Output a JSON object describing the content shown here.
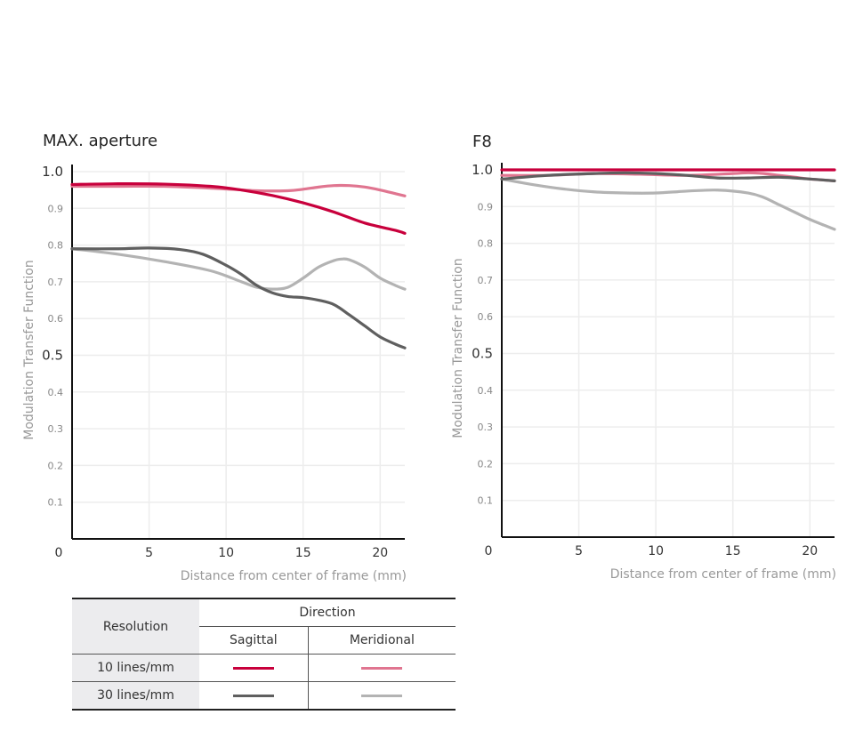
{
  "chart_data": [
    {
      "type": "line",
      "title": "MAX. aperture",
      "xlabel": "Distance from center of frame (mm)",
      "ylabel": "Modulation Transfer Function",
      "xlim": [
        0,
        21.6
      ],
      "ylim": [
        0,
        1.0
      ],
      "xticks": [
        "0",
        "5",
        "10",
        "15",
        "20"
      ],
      "yticks": [
        "0.1",
        "0.2",
        "0.3",
        "0.4",
        "0.5",
        "0.6",
        "0.7",
        "0.8",
        "0.9",
        "1.0"
      ],
      "series": [
        {
          "name": "10 lines/mm Meridional",
          "color": "#e07590",
          "x": [
            0,
            3,
            6,
            9,
            12,
            14,
            15,
            16,
            17,
            18,
            19,
            20,
            21,
            21.6
          ],
          "y": [
            0.96,
            0.96,
            0.96,
            0.955,
            0.948,
            0.948,
            0.952,
            0.958,
            0.962,
            0.962,
            0.958,
            0.95,
            0.94,
            0.934
          ]
        },
        {
          "name": "10 lines/mm Sagittal",
          "color": "#c8003c",
          "x": [
            0,
            3,
            6,
            9,
            11,
            13,
            15,
            17,
            19,
            21,
            21.6
          ],
          "y": [
            0.965,
            0.967,
            0.966,
            0.96,
            0.95,
            0.935,
            0.915,
            0.89,
            0.86,
            0.84,
            0.832
          ]
        },
        {
          "name": "30 lines/mm Meridional",
          "color": "#b3b3b3",
          "x": [
            0,
            3,
            6,
            9,
            11,
            12,
            13,
            14,
            15,
            16,
            17,
            17.5,
            18,
            19,
            20,
            21,
            21.6
          ],
          "y": [
            0.79,
            0.775,
            0.755,
            0.73,
            0.7,
            0.685,
            0.68,
            0.685,
            0.71,
            0.74,
            0.758,
            0.762,
            0.76,
            0.74,
            0.71,
            0.69,
            0.68
          ]
        },
        {
          "name": "30 lines/mm Sagittal",
          "color": "#5f5f5f",
          "x": [
            0,
            3,
            5,
            7,
            8.5,
            10,
            11,
            12,
            13,
            14,
            15,
            16,
            17,
            18,
            19,
            20,
            21,
            21.6
          ],
          "y": [
            0.79,
            0.79,
            0.792,
            0.788,
            0.775,
            0.745,
            0.72,
            0.69,
            0.67,
            0.66,
            0.657,
            0.65,
            0.638,
            0.61,
            0.58,
            0.55,
            0.53,
            0.52
          ]
        }
      ]
    },
    {
      "type": "line",
      "title": "F8",
      "xlabel": "Distance from center of frame (mm)",
      "ylabel": "Modulation Transfer Function",
      "xlim": [
        0,
        21.6
      ],
      "ylim": [
        0,
        1.0
      ],
      "xticks": [
        "0",
        "5",
        "10",
        "15",
        "20"
      ],
      "yticks": [
        "0.1",
        "0.2",
        "0.3",
        "0.4",
        "0.5",
        "0.6",
        "0.7",
        "0.8",
        "0.9",
        "1.0"
      ],
      "series": [
        {
          "name": "10 lines/mm Meridional",
          "color": "#e07590",
          "x": [
            0,
            3,
            6,
            9,
            12,
            15,
            16,
            17,
            18,
            19,
            20,
            21,
            21.6
          ],
          "y": [
            0.985,
            0.985,
            0.99,
            0.988,
            0.985,
            0.99,
            0.992,
            0.99,
            0.985,
            0.98,
            0.975,
            0.972,
            0.97
          ]
        },
        {
          "name": "10 lines/mm Sagittal",
          "color": "#c8003c",
          "x": [
            0,
            5,
            10,
            15,
            20,
            21.6
          ],
          "y": [
            1.0,
            1.0,
            1.0,
            1.0,
            1.0,
            1.0
          ]
        },
        {
          "name": "30 lines/mm Meridional",
          "color": "#b3b3b3",
          "x": [
            0,
            2,
            4,
            6,
            8,
            10,
            12,
            14,
            16,
            17,
            18,
            19,
            20,
            21,
            21.6
          ],
          "y": [
            0.975,
            0.96,
            0.948,
            0.94,
            0.937,
            0.937,
            0.942,
            0.945,
            0.937,
            0.925,
            0.905,
            0.885,
            0.865,
            0.848,
            0.838
          ]
        },
        {
          "name": "30 lines/mm Sagittal",
          "color": "#5f5f5f",
          "x": [
            0,
            3,
            6,
            8,
            10,
            12,
            14,
            16,
            18,
            20,
            21.6
          ],
          "y": [
            0.975,
            0.985,
            0.99,
            0.992,
            0.99,
            0.985,
            0.978,
            0.978,
            0.98,
            0.975,
            0.97
          ]
        }
      ]
    }
  ],
  "legend": {
    "resolution_header": "Resolution",
    "direction_header": "Direction",
    "sagittal": "Sagittal",
    "meridional": "Meridional",
    "rows": [
      {
        "label": "10 lines/mm",
        "sagittal_color": "#c8003c",
        "meridional_color": "#e07590"
      },
      {
        "label": "30 lines/mm",
        "sagittal_color": "#5f5f5f",
        "meridional_color": "#b3b3b3"
      }
    ]
  }
}
